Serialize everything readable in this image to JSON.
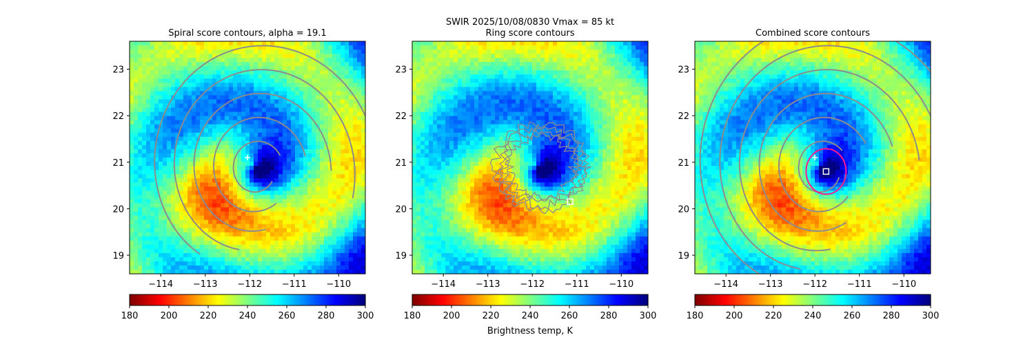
{
  "figure": {
    "suptitle_line1": "SWIR  2025/10/08/0830    Vmax = 85 kt",
    "colorbar_label": "Brightness temp, K",
    "colors": {
      "contour": "#8c8c8c",
      "marker": "#ffffff",
      "combined_ring": "#ff1a8c"
    },
    "colormap": "jet_r"
  },
  "chart_data": [
    {
      "type": "heatmap",
      "title": "Spiral score contours, alpha = 19.1",
      "overlay": "spiral",
      "xlim": [
        -114.7,
        -109.4
      ],
      "ylim": [
        18.6,
        23.6
      ],
      "xticks": [
        "−114",
        "−113",
        "−112",
        "−111",
        "−110"
      ],
      "xtick_values": [
        -114,
        -113,
        -112,
        -111,
        -110
      ],
      "yticks": [
        "19",
        "20",
        "21",
        "22",
        "23"
      ],
      "ytick_values": [
        19,
        20,
        21,
        22,
        23
      ],
      "markers": [
        {
          "kind": "plus",
          "lon": -112.05,
          "lat": 21.1
        }
      ],
      "colorbar": {
        "range": [
          180,
          300
        ],
        "ticks": [
          "180",
          "200",
          "220",
          "240",
          "260",
          "280",
          "300"
        ],
        "tick_values": [
          180,
          200,
          220,
          240,
          260,
          280,
          300
        ]
      }
    },
    {
      "type": "heatmap",
      "title": "Ring score contours",
      "overlay": "ring",
      "xlim": [
        -114.7,
        -109.4
      ],
      "ylim": [
        18.6,
        23.6
      ],
      "xticks": [
        "−114",
        "−113",
        "−112",
        "−111",
        "−110"
      ],
      "xtick_values": [
        -114,
        -113,
        -112,
        -111,
        -110
      ],
      "yticks": [
        "19",
        "20",
        "21",
        "22",
        "23"
      ],
      "ytick_values": [
        19,
        20,
        21,
        22,
        23
      ],
      "markers": [
        {
          "kind": "square",
          "lon": -111.15,
          "lat": 20.15
        }
      ],
      "colorbar": {
        "range": [
          180,
          300
        ],
        "ticks": [
          "180",
          "200",
          "220",
          "240",
          "260",
          "280",
          "300"
        ],
        "tick_values": [
          180,
          200,
          220,
          240,
          260,
          280,
          300
        ]
      }
    },
    {
      "type": "heatmap",
      "title": "Combined score contours",
      "overlay": "combined",
      "xlim": [
        -114.7,
        -109.4
      ],
      "ylim": [
        18.6,
        23.6
      ],
      "xticks": [
        "−114",
        "−113",
        "−112",
        "−111",
        "−110"
      ],
      "xtick_values": [
        -114,
        -113,
        -112,
        -111,
        -110
      ],
      "yticks": [
        "19",
        "20",
        "21",
        "22",
        "23"
      ],
      "ytick_values": [
        19,
        20,
        21,
        22,
        23
      ],
      "markers": [
        {
          "kind": "plus",
          "lon": -112.0,
          "lat": 21.1
        },
        {
          "kind": "square",
          "lon": -111.75,
          "lat": 20.8
        }
      ],
      "colorbar": {
        "range": [
          180,
          300
        ],
        "ticks": [
          "180",
          "200",
          "220",
          "240",
          "260",
          "280",
          "300"
        ],
        "tick_values": [
          180,
          200,
          220,
          240,
          260,
          280,
          300
        ]
      }
    }
  ]
}
